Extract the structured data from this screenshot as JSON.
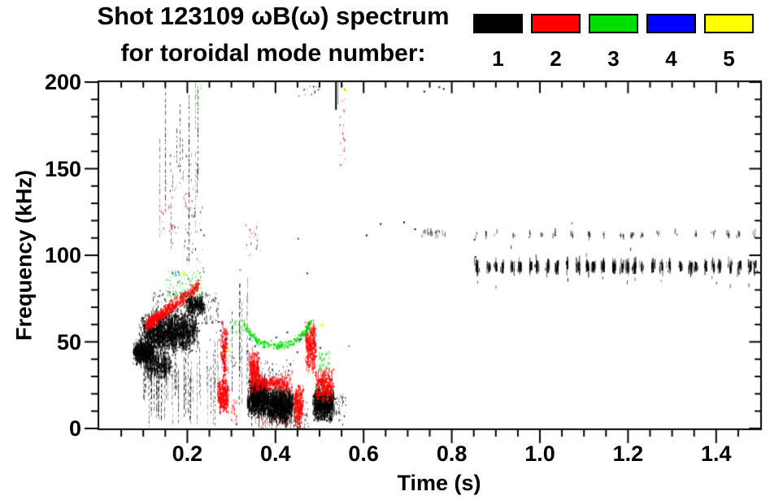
{
  "title": {
    "line1": "Shot 123109 ωB(ω) spectrum",
    "line2": "for toroidal mode number:"
  },
  "legend": {
    "items": [
      {
        "label": "1",
        "color": "#000000"
      },
      {
        "label": "2",
        "color": "#ff0000"
      },
      {
        "label": "3",
        "color": "#00dd00"
      },
      {
        "label": "4",
        "color": "#0000ff"
      },
      {
        "label": "5",
        "color": "#ffff00"
      }
    ]
  },
  "axes": {
    "xlabel": "Time (s)",
    "ylabel": "Frequency (kHz)",
    "x": {
      "min": 0,
      "max": 1.5,
      "values": [
        0.2,
        0.4,
        0.6,
        0.8,
        1.0,
        1.2,
        1.4
      ],
      "labels": [
        "0.2",
        "0.4",
        "0.6",
        "0.8",
        "1.0",
        "1.2",
        "1.4"
      ],
      "minorStep": 0.05
    },
    "y": {
      "min": 0,
      "max": 200,
      "values": [
        0,
        50,
        100,
        150,
        200
      ],
      "labels": [
        "0",
        "50",
        "100",
        "150",
        "200"
      ],
      "minorStep": 10
    }
  },
  "chart_data": {
    "type": "scatter",
    "title": "Shot 123109 ωB(ω) spectrum for toroidal mode number: 1-5",
    "xlabel": "Time (s)",
    "ylabel": "Frequency (kHz)",
    "xlim": [
      0,
      1.5
    ],
    "ylim": [
      0,
      200
    ],
    "grid": false,
    "legend_position": "top-right",
    "series": [
      {
        "name": "n=1",
        "color": "#000000"
      },
      {
        "name": "n=2",
        "color": "#ff0000"
      },
      {
        "name": "n=3",
        "color": "#00dd00"
      },
      {
        "name": "n=4",
        "color": "#0000ff"
      },
      {
        "name": "n=5",
        "color": "#ffff00"
      }
    ],
    "features": [
      "dense n=1 (black) activity t=0.08-0.23 s at f=35-75 kHz with vertical hair streaks to 0 kHz",
      "n=2 (red) chirping band rising 60->83 kHz over t=0.10-0.23 s",
      "n=3 (green) specks 76-92 kHz t=0.15-0.24 s and near 195 kHz at t=0.22 s",
      "red vertical burst t=0.28 s from 10-63 kHz",
      "black bursts t=0.33-0.44 s and t=0.48-0.53 s below 32 kHz",
      "green U-shaped band 48-62 kHz over t=0.33-0.48 s",
      "red bursts t=0.34-0.53 s between 0-65 kHz",
      "black/red/gray streaks near 155-200 kHz around t=0.53-0.56 s",
      "sparse black dots 108-120 kHz t=0.6-0.8 s",
      "quasi-periodic black dash band ~86-101 kHz from t=0.86-1.5 s",
      "sparser black dash band ~108-116 kHz from t=0.86-1.5 s"
    ],
    "clusters": [
      {
        "type": "blob",
        "color": "#000000",
        "t": [
          0.075,
          0.125
        ],
        "f": [
          37,
          52
        ],
        "n": 650,
        "spike": 0.25
      },
      {
        "type": "blob",
        "color": "#000000",
        "t": [
          0.09,
          0.225
        ],
        "f": [
          44,
          68
        ],
        "n": 1700,
        "spike": 0.3
      },
      {
        "type": "blob",
        "color": "#000000",
        "t": [
          0.1,
          0.165
        ],
        "f": [
          28,
          46
        ],
        "n": 350,
        "spike": 0.3
      },
      {
        "type": "blob",
        "color": "#000000",
        "t": [
          0.195,
          0.24
        ],
        "f": [
          66,
          77
        ],
        "n": 300,
        "spike": 0.2
      },
      {
        "type": "specks",
        "color": "#000000",
        "t": [
          0.12,
          0.235
        ],
        "f": [
          66,
          80
        ],
        "n": 140
      },
      {
        "type": "vstreaks",
        "color": "#000000",
        "t": [
          0.095,
          0.27
        ],
        "fTop": [
          28,
          52
        ],
        "fBot": [
          0,
          26
        ],
        "n": 55,
        "aMin": 0.35
      },
      {
        "type": "specks",
        "color": "#000000",
        "t": [
          0.23,
          0.27
        ],
        "f": [
          60,
          79
        ],
        "n": 70
      },
      {
        "type": "specks",
        "color": "#000000",
        "t": [
          0.25,
          0.31
        ],
        "f": [
          30,
          62
        ],
        "n": 35
      },
      {
        "type": "vstreaks",
        "color": "#000000",
        "t": [
          0.3,
          0.34
        ],
        "fTop": [
          55,
          92
        ],
        "fBot": [
          10,
          35
        ],
        "n": 7,
        "aMin": 0.3
      },
      {
        "type": "vstreaks",
        "color": "#000000",
        "t": [
          0.13,
          0.225
        ],
        "fTop": [
          120,
          200
        ],
        "fBot": [
          95,
          175
        ],
        "n": 22,
        "aMin": 0.3
      },
      {
        "type": "specks",
        "color": "#000000",
        "t": [
          0.19,
          0.24
        ],
        "f": [
          90,
          130
        ],
        "n": 30
      },
      {
        "type": "specks",
        "color": "#000000",
        "t": [
          0.16,
          0.225
        ],
        "f": [
          100,
          160
        ],
        "n": 35
      },
      {
        "type": "blob",
        "color": "#000000",
        "t": [
          0.335,
          0.385
        ],
        "f": [
          6,
          30
        ],
        "n": 1000,
        "spike": 0.35
      },
      {
        "type": "blob",
        "color": "#000000",
        "t": [
          0.378,
          0.44
        ],
        "f": [
          3,
          24
        ],
        "n": 1100,
        "spike": 0.35
      },
      {
        "type": "specks",
        "color": "#000000",
        "t": [
          0.335,
          0.44
        ],
        "f": [
          28,
          40
        ],
        "n": 60
      },
      {
        "type": "vstreaks",
        "color": "#000000",
        "t": [
          0.34,
          0.46
        ],
        "fTop": [
          4,
          14
        ],
        "fBot": [
          0,
          3
        ],
        "n": 30,
        "aMin": 0.4
      },
      {
        "type": "specks",
        "color": "#000000",
        "t": [
          0.44,
          0.475
        ],
        "f": [
          0,
          16
        ],
        "n": 50
      },
      {
        "type": "blob",
        "color": "#000000",
        "t": [
          0.483,
          0.535
        ],
        "f": [
          4,
          24
        ],
        "n": 850,
        "spike": 0.3
      },
      {
        "type": "specks",
        "color": "#000000",
        "t": [
          0.536,
          0.56
        ],
        "f": [
          2,
          20
        ],
        "n": 40
      },
      {
        "type": "specks",
        "color": "#000000",
        "t": [
          0.44,
          0.505
        ],
        "f": [
          192,
          199
        ],
        "n": 14
      },
      {
        "type": "vline",
        "color": "#000000",
        "tt": 0.5355,
        "f": [
          184,
          200
        ],
        "w": 2,
        "a": 1
      },
      {
        "type": "vline",
        "color": "#000000",
        "tt": 0.541,
        "f": [
          187,
          200
        ],
        "w": 1,
        "a": 0.45
      },
      {
        "type": "specks",
        "color": "#000000",
        "t": [
          0.33,
          0.365
        ],
        "f": [
          100,
          118
        ],
        "n": 10
      },
      {
        "type": "points",
        "color": "#000000",
        "pts": [
          [
            0.637,
            118.5
          ],
          [
            0.69,
            119.5
          ],
          [
            0.715,
            115.5
          ],
          [
            0.736,
            195
          ],
          [
            0.77,
            197.5
          ],
          [
            0.78,
            196.5
          ],
          [
            0.85,
            109.5
          ],
          [
            0.852,
            99.5
          ],
          [
            0.605,
            112
          ]
        ],
        "s": 2
      },
      {
        "type": "dashband",
        "color": "#000000",
        "t": [
          0.735,
          0.79
        ],
        "fC": 113,
        "fJit": 2.2,
        "dt": [
          0.008,
          0.02
        ],
        "per": [
          3,
          8
        ],
        "h": [
          2,
          7
        ],
        "aMin": 0.4,
        "outlier": 0
      },
      {
        "type": "dashband",
        "color": "#000000",
        "t": [
          0.856,
          1.5
        ],
        "fC": 93.5,
        "fJit": 3.2,
        "dt": [
          0.012,
          0.027
        ],
        "per": [
          7,
          17
        ],
        "h": [
          3,
          13
        ],
        "aMin": 0.45,
        "outlier": 0.3,
        "core": true
      },
      {
        "type": "dashband",
        "color": "#000000",
        "t": [
          0.856,
          1.5
        ],
        "fC": 112,
        "fJit": 2.0,
        "dt": [
          0.02,
          0.046
        ],
        "per": [
          2,
          7
        ],
        "h": [
          2,
          7
        ],
        "aMin": 0.4,
        "outlier": 0.05
      },
      {
        "type": "band",
        "color": "#ff0000",
        "path": [
          [
            0.105,
            60
          ],
          [
            0.125,
            64
          ],
          [
            0.17,
            72
          ],
          [
            0.225,
            83
          ]
        ],
        "wid": 3.2,
        "n": 650,
        "keep": 0.85
      },
      {
        "type": "specks",
        "color": "#ff0000",
        "t": [
          0.135,
          0.178
        ],
        "f": [
          113,
          142
        ],
        "n": 22
      },
      {
        "type": "specks",
        "color": "#ff0000",
        "t": [
          0.19,
          0.215
        ],
        "f": [
          125,
          147
        ],
        "n": 12
      },
      {
        "type": "blob",
        "color": "#ff0000",
        "t": [
          0.267,
          0.293
        ],
        "f": [
          9,
          30
        ],
        "n": 280,
        "spike": 0.2
      },
      {
        "type": "blob",
        "color": "#ff0000",
        "t": [
          0.275,
          0.29
        ],
        "f": [
          28,
          63
        ],
        "n": 200,
        "spike": 0.15
      },
      {
        "type": "specks",
        "color": "#ff0000",
        "t": [
          0.296,
          0.312
        ],
        "f": [
          4,
          18
        ],
        "n": 30
      },
      {
        "type": "blob",
        "color": "#ff0000",
        "t": [
          0.338,
          0.363
        ],
        "f": [
          20,
          46
        ],
        "n": 320,
        "spike": 0.2
      },
      {
        "type": "blob",
        "color": "#ff0000",
        "t": [
          0.35,
          0.428
        ],
        "f": [
          22,
          31
        ],
        "n": 300,
        "spike": 0.15
      },
      {
        "type": "specks",
        "color": "#ff0000",
        "t": [
          0.412,
          0.438
        ],
        "f": [
          21,
          34
        ],
        "n": 70
      },
      {
        "type": "blob",
        "color": "#ff0000",
        "t": [
          0.44,
          0.462
        ],
        "f": [
          0,
          27
        ],
        "n": 260,
        "spike": 0.25
      },
      {
        "type": "blob",
        "color": "#ff0000",
        "t": [
          0.466,
          0.492
        ],
        "f": [
          30,
          64
        ],
        "n": 330,
        "spike": 0.2
      },
      {
        "type": "blob",
        "color": "#ff0000",
        "t": [
          0.49,
          0.532
        ],
        "f": [
          15,
          36
        ],
        "n": 330,
        "spike": 0.2
      },
      {
        "type": "specks",
        "color": "#ff0000",
        "t": [
          0.545,
          0.557
        ],
        "f": [
          152,
          200
        ],
        "n": 26
      },
      {
        "type": "specks",
        "color": "#ff0000",
        "t": [
          0.33,
          0.36
        ],
        "f": [
          102,
          118
        ],
        "n": 10
      },
      {
        "type": "specks",
        "color": "#ff0000",
        "t": [
          0.36,
          0.43
        ],
        "f": [
          1,
          7
        ],
        "n": 25
      },
      {
        "type": "points",
        "color": "#ff0000",
        "pts": [
          [
            0.45,
            110
          ],
          [
            0.105,
            57
          ]
        ],
        "s": 2
      },
      {
        "type": "specks",
        "color": "#00dd00",
        "t": [
          0.148,
          0.238
        ],
        "f": [
          76,
          92
        ],
        "n": 90
      },
      {
        "type": "specks",
        "color": "#00dd00",
        "t": [
          0.218,
          0.232
        ],
        "f": [
          186,
          200
        ],
        "n": 9
      },
      {
        "type": "band",
        "color": "#00dd00",
        "path": [
          [
            0.327,
            61
          ],
          [
            0.345,
            54
          ],
          [
            0.365,
            50
          ],
          [
            0.4,
            48
          ],
          [
            0.425,
            49
          ],
          [
            0.45,
            52
          ],
          [
            0.465,
            56
          ],
          [
            0.48,
            62
          ]
        ],
        "wid": 2.2,
        "n": 330,
        "keep": 0.72
      },
      {
        "type": "specks",
        "color": "#00dd00",
        "t": [
          0.498,
          0.524
        ],
        "f": [
          34,
          45
        ],
        "n": 55
      },
      {
        "type": "specks",
        "color": "#00dd00",
        "t": [
          0.3,
          0.33
        ],
        "f": [
          56,
          64
        ],
        "n": 25
      },
      {
        "type": "points",
        "color": "#00dd00",
        "pts": [
          [
            0.315,
            18
          ],
          [
            0.318,
            92
          ],
          [
            0.565,
            48
          ]
        ],
        "s": 2
      },
      {
        "type": "specks",
        "color": "#0000ff",
        "t": [
          0.165,
          0.205
        ],
        "f": [
          82,
          92
        ],
        "n": 8
      },
      {
        "type": "points",
        "color": "#0000ff",
        "pts": [
          [
            0.27,
            62
          ],
          [
            0.274,
            57
          ],
          [
            0.285,
            51.5
          ],
          [
            0.335,
            45
          ],
          [
            0.34,
            52
          ],
          [
            0.352,
            48
          ],
          [
            0.4,
            53
          ],
          [
            0.448,
            44.5
          ],
          [
            0.455,
            52
          ],
          [
            0.5,
            47
          ],
          [
            0.29,
            24
          ],
          [
            0.31,
            3
          ],
          [
            0.425,
            56
          ],
          [
            0.47,
            90
          ]
        ],
        "s": 2
      },
      {
        "type": "points",
        "color": "#ffff00",
        "pts": [
          [
            0.29,
            45.4
          ],
          [
            0.503,
            60.4
          ],
          [
            0.19,
            90.5
          ],
          [
            0.557,
            196
          ]
        ],
        "s": 3
      }
    ]
  }
}
